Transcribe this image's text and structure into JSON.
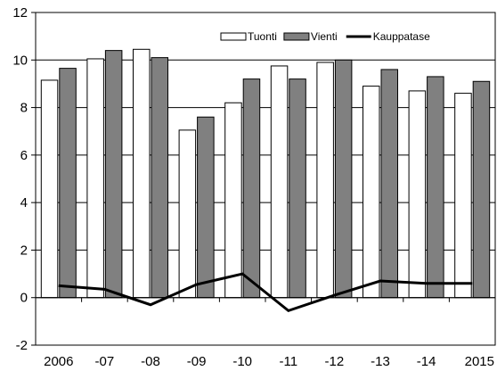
{
  "chart_data": {
    "type": "bar",
    "title": "",
    "xlabel": "",
    "ylabel": "",
    "ylim": [
      -2,
      12
    ],
    "yticks": [
      -2,
      0,
      2,
      4,
      6,
      8,
      10,
      12
    ],
    "categories": [
      "2006",
      "-07",
      "-08",
      "-09",
      "-10",
      "-11",
      "-12",
      "-13",
      "-14",
      "2015"
    ],
    "grid": "horizontal",
    "legend_position": "top-right",
    "series": [
      {
        "name": "Tuonti",
        "kind": "bar",
        "color": "#ffffff",
        "values": [
          9.15,
          10.05,
          10.45,
          7.05,
          8.2,
          9.75,
          9.9,
          8.9,
          8.7,
          8.6
        ]
      },
      {
        "name": "Vienti",
        "kind": "bar",
        "color": "#808080",
        "values": [
          9.65,
          10.4,
          10.1,
          7.6,
          9.2,
          9.2,
          10.0,
          9.6,
          9.3,
          9.1
        ]
      },
      {
        "name": "Kauppatase",
        "kind": "line",
        "color": "#000000",
        "values": [
          0.5,
          0.35,
          -0.3,
          0.55,
          1.0,
          -0.55,
          0.1,
          0.7,
          0.6,
          0.6
        ]
      }
    ]
  }
}
